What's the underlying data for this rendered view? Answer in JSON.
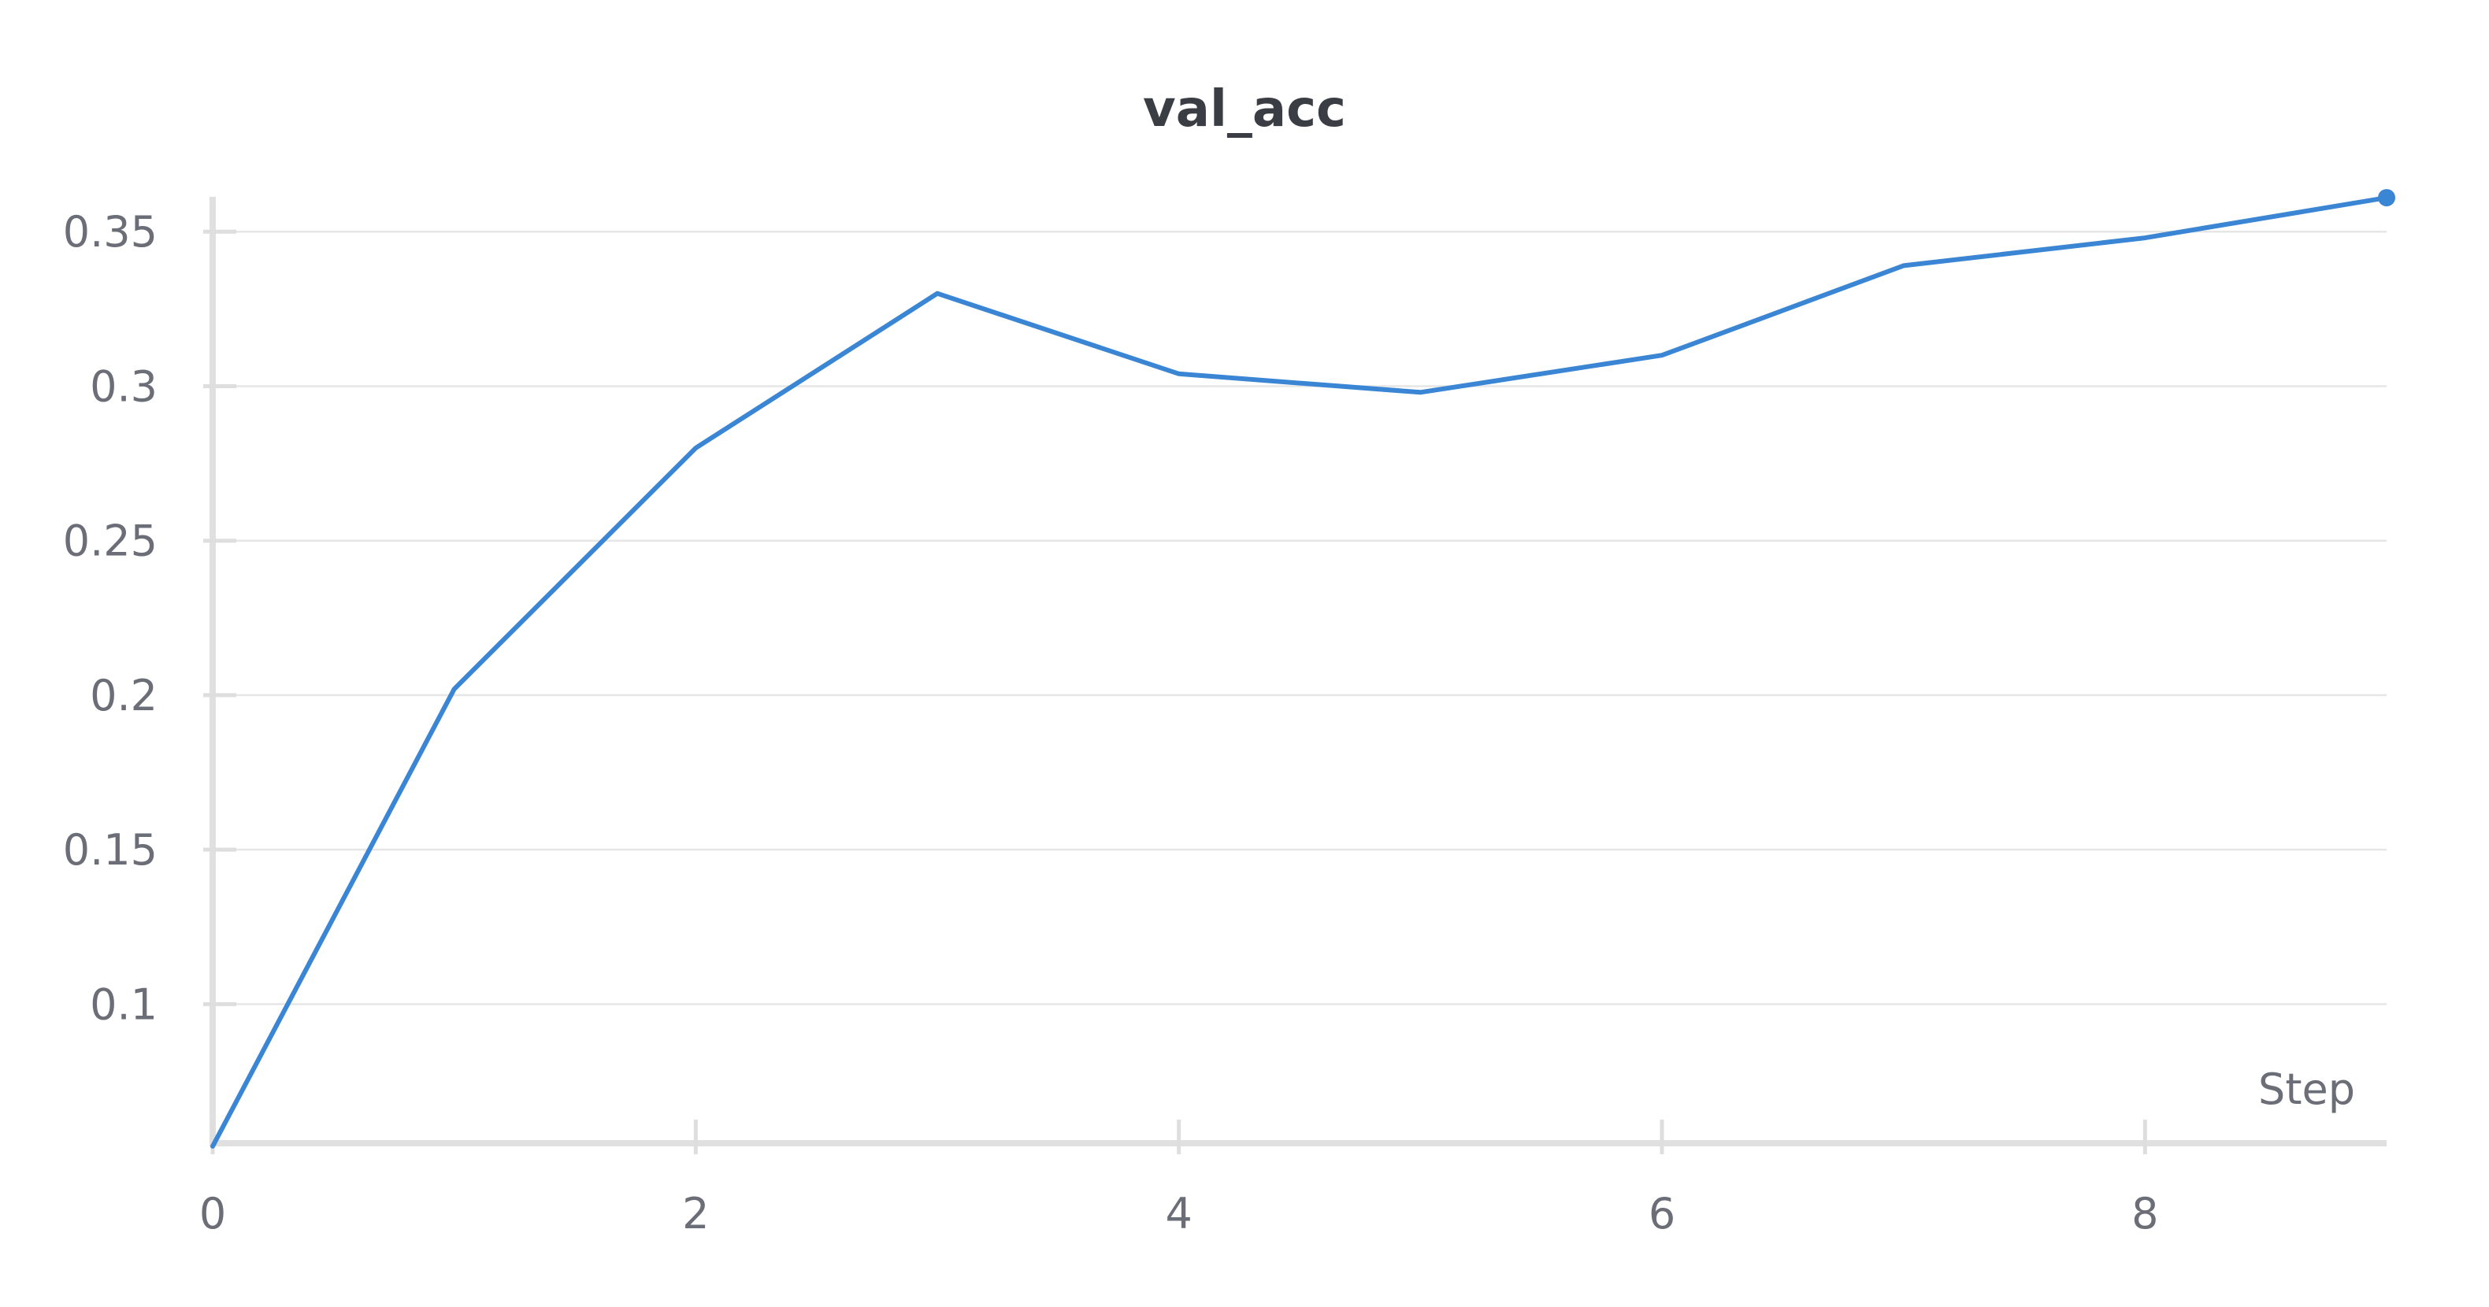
{
  "chart_data": {
    "type": "line",
    "title": "val_acc",
    "xlabel": "Step",
    "ylabel": "",
    "xlim": [
      0,
      9
    ],
    "ylim": [
      0.055,
      0.36
    ],
    "x_ticks": [
      0,
      2,
      4,
      6,
      8
    ],
    "y_ticks": [
      0.1,
      0.15,
      0.2,
      0.25,
      0.3,
      0.35
    ],
    "y_tick_labels": [
      "0.1",
      "0.15",
      "0.2",
      "0.25",
      "0.3",
      "0.35"
    ],
    "grid": "horizontal",
    "legend": "none",
    "series": [
      {
        "color": "#3a86d4",
        "x": [
          0,
          1,
          2,
          3,
          4,
          5,
          6,
          7,
          8,
          9
        ],
        "values": [
          0.054,
          0.202,
          0.28,
          0.33,
          0.304,
          0.298,
          0.31,
          0.339,
          0.348,
          0.361
        ],
        "last_point_marker": true
      }
    ]
  }
}
